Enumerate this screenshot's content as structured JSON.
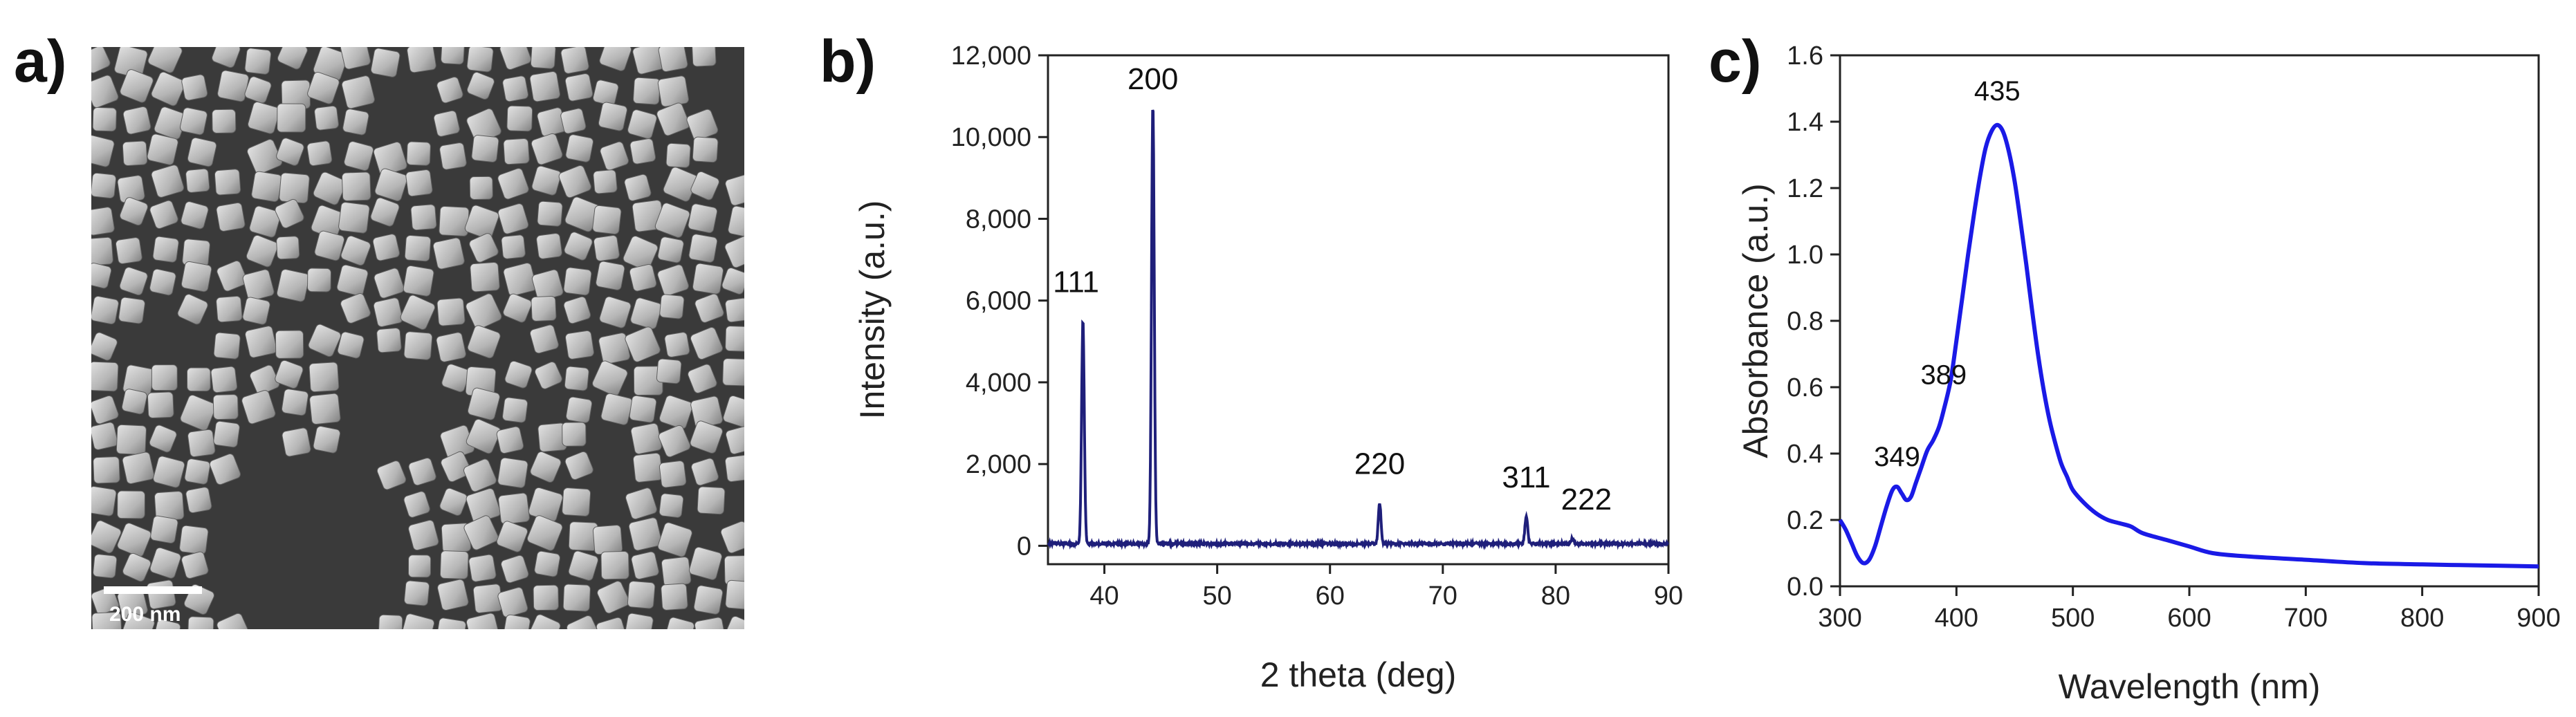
{
  "panel_labels": {
    "a": "a)",
    "b": "b)",
    "c": "c)"
  },
  "sem": {
    "scale_bar_label": "200 nm",
    "colors": {
      "background": "#3a3a3a",
      "cube_light": "#d2d2d2",
      "cube_dark": "#7a7a7a"
    }
  },
  "chart_data": [
    {
      "panel": "b",
      "type": "line",
      "title": "",
      "xlabel": "2 theta (deg)",
      "ylabel": "Intensity (a.u.)",
      "xlim": [
        35,
        90
      ],
      "ylim": [
        -450,
        12000
      ],
      "x_ticks": [
        40,
        50,
        60,
        70,
        80,
        90
      ],
      "y_ticks": [
        0,
        2000,
        4000,
        6000,
        8000,
        10000,
        12000
      ],
      "y_tick_labels": [
        "0",
        "2,000",
        "4,000",
        "6,000",
        "8,000",
        "10,000",
        "12,000"
      ],
      "color": "#1f1f7a",
      "baseline": 50,
      "peaks": [
        {
          "x": 38.1,
          "y": 5500,
          "label": "111"
        },
        {
          "x": 44.3,
          "y": 10800,
          "label": "200"
        },
        {
          "x": 64.4,
          "y": 1050,
          "label": "220"
        },
        {
          "x": 77.4,
          "y": 720,
          "label": "311"
        },
        {
          "x": 81.5,
          "y": 180,
          "label": "222"
        }
      ]
    },
    {
      "panel": "c",
      "type": "line",
      "title": "",
      "xlabel": "Wavelength (nm)",
      "ylabel": "Absorbance (a.u.)",
      "xlim": [
        300,
        900
      ],
      "ylim": [
        0,
        1.6
      ],
      "x_ticks": [
        300,
        400,
        500,
        600,
        700,
        800,
        900
      ],
      "y_ticks": [
        0.0,
        0.2,
        0.4,
        0.6,
        0.8,
        1.0,
        1.2,
        1.4,
        1.6
      ],
      "y_tick_labels": [
        "0.0",
        "0.2",
        "0.4",
        "0.6",
        "0.8",
        "1.0",
        "1.2",
        "1.4",
        "1.6"
      ],
      "color": "#1a1ae6",
      "x": [
        300,
        305,
        310,
        315,
        320,
        325,
        330,
        335,
        340,
        345,
        349,
        353,
        357,
        361,
        365,
        370,
        375,
        380,
        385,
        389,
        395,
        400,
        405,
        410,
        415,
        420,
        425,
        430,
        435,
        440,
        445,
        450,
        455,
        460,
        465,
        470,
        475,
        480,
        485,
        490,
        495,
        500,
        510,
        520,
        530,
        540,
        550,
        560,
        580,
        600,
        620,
        650,
        700,
        750,
        800,
        850,
        900
      ],
      "y": [
        0.2,
        0.17,
        0.13,
        0.09,
        0.07,
        0.08,
        0.12,
        0.18,
        0.24,
        0.29,
        0.3,
        0.28,
        0.26,
        0.27,
        0.31,
        0.36,
        0.41,
        0.44,
        0.48,
        0.53,
        0.62,
        0.74,
        0.87,
        1.0,
        1.12,
        1.23,
        1.32,
        1.37,
        1.39,
        1.37,
        1.31,
        1.22,
        1.1,
        0.97,
        0.83,
        0.7,
        0.59,
        0.5,
        0.43,
        0.37,
        0.33,
        0.29,
        0.25,
        0.22,
        0.2,
        0.19,
        0.18,
        0.16,
        0.14,
        0.12,
        0.1,
        0.09,
        0.08,
        0.07,
        0.066,
        0.063,
        0.06
      ],
      "annotations": [
        {
          "x": 349,
          "y": 0.3,
          "label": "349"
        },
        {
          "x": 389,
          "y": 0.53,
          "label": "389"
        },
        {
          "x": 435,
          "y": 1.39,
          "label": "435"
        }
      ]
    }
  ]
}
